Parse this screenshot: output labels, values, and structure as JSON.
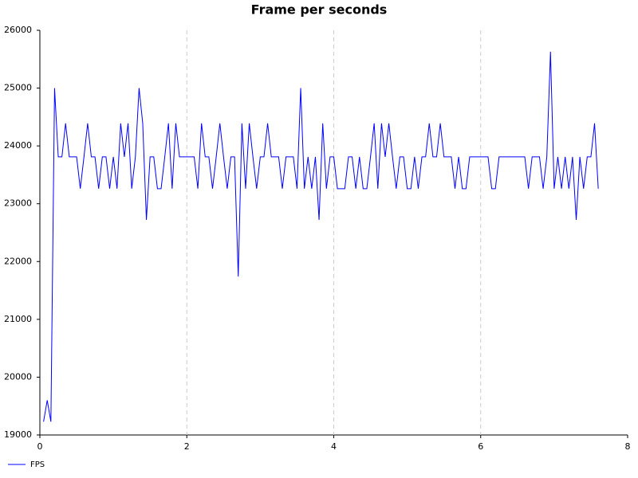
{
  "chart_data": {
    "type": "line",
    "title": "Frame per seconds",
    "x": [
      0.05,
      0.1,
      0.15,
      0.2,
      0.25,
      0.3,
      0.35,
      0.4,
      0.45,
      0.5,
      0.55,
      0.6,
      0.65,
      0.7,
      0.75,
      0.8,
      0.85,
      0.9,
      0.95,
      1.0,
      1.05,
      1.1,
      1.15,
      1.2,
      1.25,
      1.3,
      1.35,
      1.4,
      1.45,
      1.5,
      1.55,
      1.6,
      1.65,
      1.7,
      1.75,
      1.8,
      1.85,
      1.9,
      1.95,
      2.0,
      2.05,
      2.1,
      2.15,
      2.2,
      2.25,
      2.3,
      2.35,
      2.4,
      2.45,
      2.5,
      2.55,
      2.6,
      2.65,
      2.7,
      2.75,
      2.8,
      2.85,
      2.9,
      2.95,
      3.0,
      3.05,
      3.1,
      3.15,
      3.2,
      3.25,
      3.3,
      3.35,
      3.4,
      3.45,
      3.5,
      3.55,
      3.6,
      3.65,
      3.7,
      3.75,
      3.8,
      3.85,
      3.9,
      3.95,
      4.0,
      4.05,
      4.1,
      4.15,
      4.2,
      4.25,
      4.3,
      4.35,
      4.4,
      4.45,
      4.5,
      4.55,
      4.6,
      4.65,
      4.7,
      4.75,
      4.8,
      4.85,
      4.9,
      4.95,
      5.0,
      5.05,
      5.1,
      5.15,
      5.2,
      5.25,
      5.3,
      5.35,
      5.4,
      5.45,
      5.5,
      5.55,
      5.6,
      5.65,
      5.7,
      5.75,
      5.8,
      5.85,
      5.9,
      5.95,
      6.0,
      6.05,
      6.1,
      6.15,
      6.2,
      6.25,
      6.3,
      6.35,
      6.4,
      6.45,
      6.5,
      6.55,
      6.6,
      6.65,
      6.7,
      6.75,
      6.8,
      6.85,
      6.9,
      6.95,
      7.0,
      7.05,
      7.1,
      7.15,
      7.2,
      7.25,
      7.3,
      7.35,
      7.4,
      7.45,
      7.5,
      7.55,
      7.6
    ],
    "series": [
      {
        "name": "FPS",
        "color": "#0000ff",
        "values": [
          19230,
          19600,
          19230,
          25000,
          23810,
          23810,
          24390,
          23810,
          23810,
          23810,
          23260,
          23810,
          24390,
          23810,
          23810,
          23260,
          23810,
          23810,
          23260,
          23810,
          23260,
          24390,
          23810,
          24390,
          23260,
          23810,
          25000,
          24390,
          22720,
          23810,
          23810,
          23260,
          23260,
          23810,
          24390,
          23260,
          24390,
          23810,
          23810,
          23810,
          23810,
          23810,
          23260,
          24390,
          23810,
          23810,
          23260,
          23810,
          24390,
          23810,
          23260,
          23810,
          23810,
          21740,
          24390,
          23260,
          24390,
          23810,
          23260,
          23810,
          23810,
          24390,
          23810,
          23810,
          23810,
          23260,
          23810,
          23810,
          23810,
          23260,
          25000,
          23260,
          23810,
          23260,
          23810,
          22720,
          24390,
          23260,
          23810,
          23810,
          23260,
          23260,
          23260,
          23810,
          23810,
          23260,
          23810,
          23260,
          23260,
          23810,
          24390,
          23260,
          24390,
          23810,
          24390,
          23810,
          23260,
          23810,
          23810,
          23260,
          23260,
          23810,
          23260,
          23810,
          23810,
          24390,
          23810,
          23810,
          24390,
          23810,
          23810,
          23810,
          23260,
          23810,
          23260,
          23260,
          23810,
          23810,
          23810,
          23810,
          23810,
          23810,
          23260,
          23260,
          23810,
          23810,
          23810,
          23810,
          23810,
          23810,
          23810,
          23810,
          23260,
          23810,
          23810,
          23810,
          23260,
          23810,
          25630,
          23260,
          23810,
          23260,
          23810,
          23260,
          23810,
          22720,
          23810,
          23260,
          23810,
          23810,
          24390,
          23260
        ]
      }
    ],
    "xlim": [
      0,
      8
    ],
    "xticks": [
      0,
      2,
      4,
      6,
      8
    ],
    "ylim": [
      19000,
      26000
    ],
    "yticks": [
      19000,
      20000,
      21000,
      22000,
      23000,
      24000,
      25000,
      26000
    ],
    "grid": "x",
    "legend": "bottom-left"
  }
}
